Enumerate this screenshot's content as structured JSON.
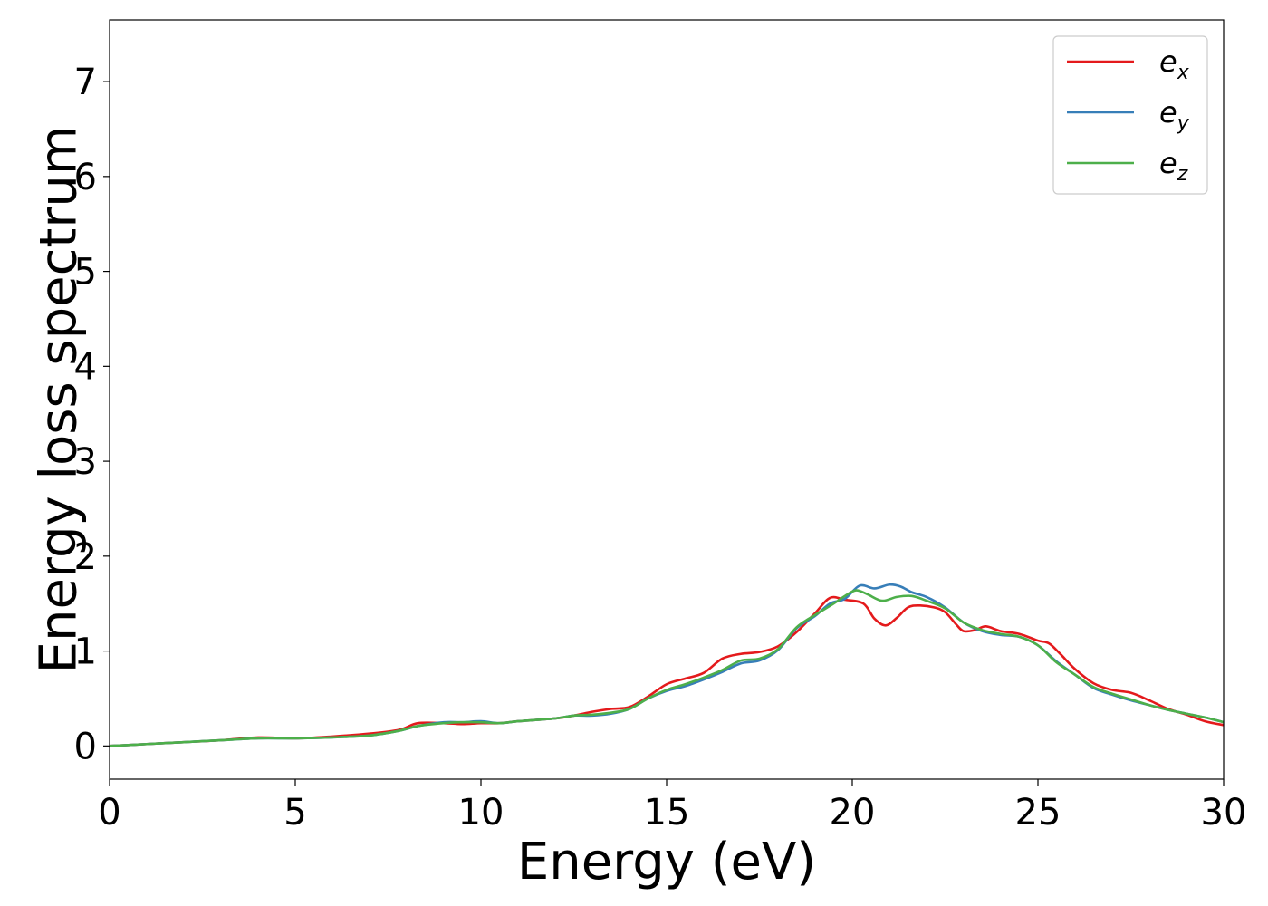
{
  "chart_data": {
    "type": "line",
    "xlabel": "Energy (eV)",
    "ylabel": "Energy loss spectrum",
    "xlim": [
      0,
      30
    ],
    "ylim": [
      -0.35,
      7.65
    ],
    "xticks": [
      0,
      5,
      10,
      15,
      20,
      25,
      30
    ],
    "yticks": [
      0,
      1,
      2,
      3,
      4,
      5,
      6,
      7
    ],
    "grid": false,
    "legend_position": "top-right",
    "series": [
      {
        "name": "e_x",
        "name_base": "e",
        "name_sub": "x",
        "color": "#e41a1c",
        "x": [
          0,
          1,
          2,
          3,
          4,
          5,
          6,
          7,
          7.8,
          8.3,
          9,
          9.5,
          10,
          10.5,
          11,
          12,
          12.5,
          13,
          13.5,
          14,
          14.5,
          15,
          15.5,
          16,
          16.5,
          17,
          17.5,
          18,
          18.5,
          19,
          19.4,
          19.8,
          20.3,
          20.6,
          20.9,
          21.2,
          21.5,
          21.8,
          22.2,
          22.5,
          22.8,
          23,
          23.3,
          23.6,
          24,
          24.5,
          25,
          25.3,
          25.6,
          26,
          26.5,
          27,
          27.5,
          28,
          28.5,
          29,
          29.5,
          30
        ],
        "y": [
          0.0,
          0.02,
          0.04,
          0.06,
          0.09,
          0.08,
          0.1,
          0.13,
          0.17,
          0.24,
          0.24,
          0.23,
          0.24,
          0.24,
          0.26,
          0.29,
          0.32,
          0.36,
          0.39,
          0.41,
          0.52,
          0.65,
          0.71,
          0.77,
          0.92,
          0.97,
          0.99,
          1.05,
          1.2,
          1.4,
          1.56,
          1.54,
          1.5,
          1.34,
          1.27,
          1.35,
          1.46,
          1.48,
          1.46,
          1.41,
          1.28,
          1.21,
          1.22,
          1.26,
          1.21,
          1.18,
          1.11,
          1.08,
          0.97,
          0.81,
          0.66,
          0.59,
          0.56,
          0.48,
          0.39,
          0.33,
          0.26,
          0.22
        ]
      },
      {
        "name": "e_y",
        "name_base": "e",
        "name_sub": "y",
        "color": "#377eb8",
        "x": [
          0,
          1,
          2,
          3,
          4,
          5,
          6,
          7,
          7.8,
          8.3,
          9,
          9.5,
          10,
          10.5,
          11,
          12,
          12.5,
          13,
          13.5,
          14,
          14.5,
          15,
          15.5,
          16,
          16.5,
          17,
          17.5,
          18,
          18.5,
          19,
          19.4,
          19.8,
          20.2,
          20.6,
          21.0,
          21.3,
          21.6,
          22.0,
          22.5,
          23,
          23.5,
          24,
          24.5,
          25,
          25.5,
          26,
          26.5,
          27,
          27.5,
          28,
          28.5,
          29,
          29.5,
          30
        ],
        "y": [
          0.0,
          0.02,
          0.04,
          0.06,
          0.08,
          0.08,
          0.09,
          0.11,
          0.16,
          0.21,
          0.25,
          0.25,
          0.26,
          0.24,
          0.26,
          0.29,
          0.32,
          0.32,
          0.34,
          0.39,
          0.5,
          0.58,
          0.63,
          0.7,
          0.78,
          0.87,
          0.9,
          1.01,
          1.24,
          1.37,
          1.5,
          1.55,
          1.69,
          1.66,
          1.7,
          1.68,
          1.62,
          1.57,
          1.46,
          1.3,
          1.21,
          1.17,
          1.15,
          1.06,
          0.89,
          0.75,
          0.61,
          0.54,
          0.48,
          0.43,
          0.38,
          0.34,
          0.3,
          0.25
        ]
      },
      {
        "name": "e_z",
        "name_base": "e",
        "name_sub": "z",
        "color": "#4daf4a",
        "x": [
          0,
          1,
          2,
          3,
          4,
          5,
          6,
          7,
          7.8,
          8.3,
          9,
          9.5,
          10,
          10.5,
          11,
          12,
          12.5,
          13,
          13.5,
          14,
          14.5,
          15,
          15.5,
          16,
          16.5,
          17,
          17.5,
          18,
          18.5,
          19,
          19.5,
          19.8,
          20.1,
          20.4,
          20.8,
          21.2,
          21.6,
          22.0,
          22.5,
          23,
          23.5,
          24,
          24.5,
          25,
          25.5,
          26,
          26.5,
          27,
          27.5,
          28,
          28.5,
          29,
          29.5,
          30
        ],
        "y": [
          0.0,
          0.02,
          0.04,
          0.06,
          0.08,
          0.08,
          0.09,
          0.11,
          0.16,
          0.21,
          0.24,
          0.25,
          0.25,
          0.24,
          0.26,
          0.29,
          0.32,
          0.33,
          0.35,
          0.39,
          0.5,
          0.59,
          0.65,
          0.72,
          0.8,
          0.9,
          0.92,
          1.02,
          1.25,
          1.38,
          1.5,
          1.58,
          1.64,
          1.6,
          1.53,
          1.57,
          1.58,
          1.53,
          1.45,
          1.3,
          1.22,
          1.18,
          1.15,
          1.06,
          0.88,
          0.75,
          0.62,
          0.55,
          0.49,
          0.43,
          0.38,
          0.34,
          0.3,
          0.25
        ]
      }
    ]
  }
}
